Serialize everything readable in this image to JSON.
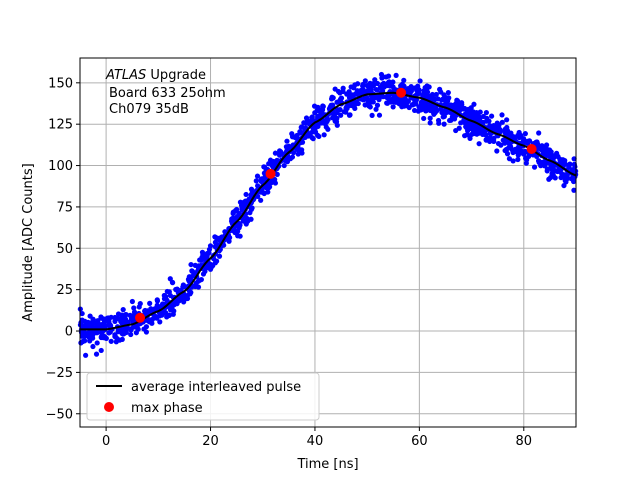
{
  "chart_data": {
    "type": "scatter",
    "xlabel": "Time [ns]",
    "ylabel": "Amplitude [ADC Counts]",
    "xlim": [
      -5,
      90
    ],
    "ylim": [
      -58,
      165
    ],
    "xticks": [
      0,
      20,
      40,
      60,
      80
    ],
    "yticks": [
      -50,
      -25,
      0,
      25,
      50,
      75,
      100,
      125,
      150
    ],
    "xtick_labels": [
      "0",
      "20",
      "40",
      "60",
      "80"
    ],
    "ytick_labels": [
      "−50",
      "−25",
      "0",
      "25",
      "50",
      "75",
      "100",
      "125",
      "150"
    ],
    "grid": true,
    "legend_placement": "lower-left",
    "annotation": {
      "atlas": "ATLAS",
      "line1": "Upgrade",
      "line2": "Board 633 25ohm",
      "line3": "Ch079 35dB"
    },
    "average_pulse": {
      "name": "average interleaved pulse",
      "color": "#000000",
      "points": [
        [
          -5,
          1
        ],
        [
          0,
          1
        ],
        [
          5,
          4
        ],
        [
          10,
          12
        ],
        [
          15,
          24
        ],
        [
          20,
          44
        ],
        [
          25,
          66
        ],
        [
          30,
          88
        ],
        [
          35,
          108
        ],
        [
          40,
          126
        ],
        [
          45,
          137
        ],
        [
          50,
          143
        ],
        [
          55,
          144
        ],
        [
          60,
          141
        ],
        [
          65,
          135
        ],
        [
          70,
          127
        ],
        [
          75,
          119
        ],
        [
          80,
          112
        ],
        [
          85,
          103
        ],
        [
          90,
          94
        ]
      ]
    },
    "max_phase": {
      "name": "max phase",
      "color": "#ff0000",
      "points": [
        [
          6.5,
          8
        ],
        [
          31.5,
          95
        ],
        [
          56.5,
          144
        ],
        [
          81.5,
          110
        ]
      ]
    },
    "samples": {
      "color": "#0000ff",
      "count": 1500,
      "scatter_amplitude": 4.5
    }
  }
}
